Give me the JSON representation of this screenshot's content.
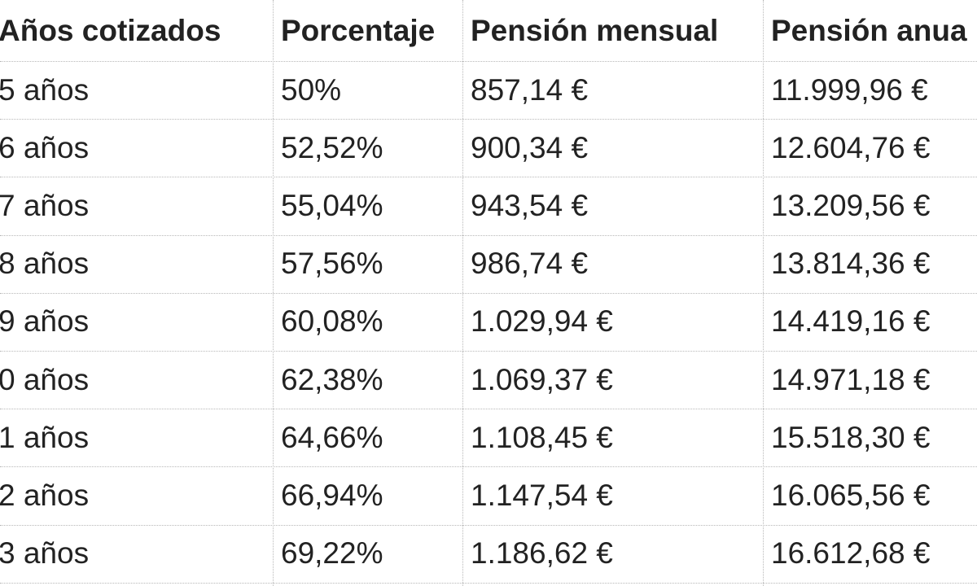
{
  "table": {
    "header": [
      "Años cotizados",
      "Porcentaje",
      "Pensión mensual",
      "Pensión anua"
    ],
    "rows": [
      [
        "5 años",
        "50%",
        "857,14 €",
        "11.999,96 €"
      ],
      [
        "6 años",
        "52,52%",
        "900,34 €",
        "12.604,76 €"
      ],
      [
        "7 años",
        "55,04%",
        "943,54 €",
        "13.209,56 €"
      ],
      [
        "8 años",
        "57,56%",
        "986,74 €",
        "13.814,36 €"
      ],
      [
        "9 años",
        "60,08%",
        "1.029,94 €",
        "14.419,16 €"
      ],
      [
        "0 años",
        "62,38%",
        "1.069,37 €",
        "14.971,18 €"
      ],
      [
        "1 años",
        "64,66%",
        "1.108,45 €",
        "15.518,30 €"
      ],
      [
        "2 años",
        "66,94%",
        "1.147,54 €",
        "16.065,56 €"
      ],
      [
        "3 años",
        "69,22%",
        "1.186,62 €",
        "16.612,68 €"
      ]
    ]
  }
}
